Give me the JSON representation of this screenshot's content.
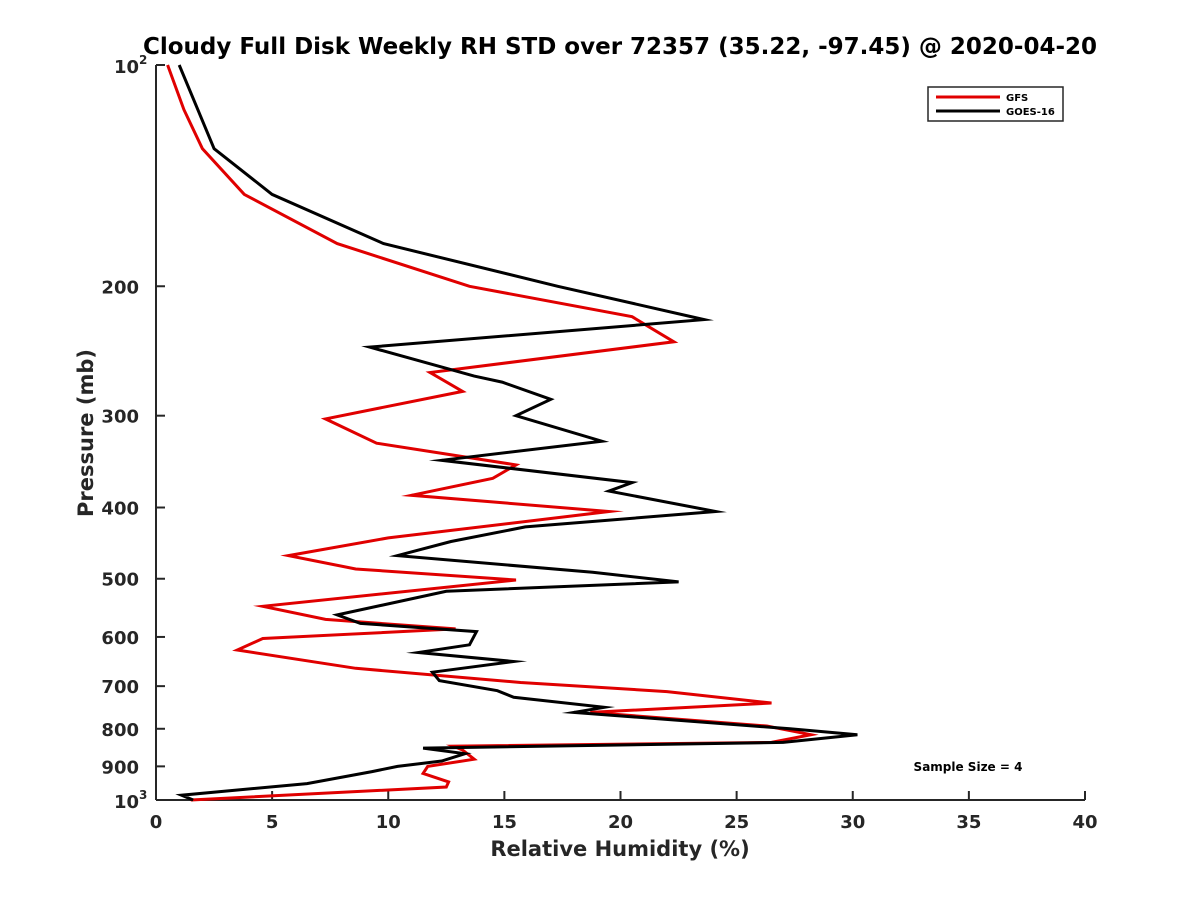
{
  "chart_data": {
    "type": "line",
    "title": "Cloudy Full Disk Weekly RH STD over 72357 (35.22, -97.45) @ 2020-04-20",
    "xlabel": "Relative Humidity (%)",
    "ylabel": "Pressure (mb)",
    "xlim": [
      0,
      40
    ],
    "ylim": [
      100,
      1000
    ],
    "y_scale": "log",
    "y_reversed": true,
    "x_ticks": [
      "0",
      "5",
      "10",
      "15",
      "20",
      "25",
      "30",
      "35",
      "40"
    ],
    "y_ticks": [
      {
        "value": 100,
        "label": "10",
        "sup": "2"
      },
      {
        "value": 200,
        "label": "200"
      },
      {
        "value": 300,
        "label": "300"
      },
      {
        "value": 400,
        "label": "400"
      },
      {
        "value": 500,
        "label": "500"
      },
      {
        "value": 600,
        "label": "600"
      },
      {
        "value": 700,
        "label": "700"
      },
      {
        "value": 800,
        "label": "800"
      },
      {
        "value": 900,
        "label": "900"
      },
      {
        "value": 1000,
        "label": "10",
        "sup": "3"
      }
    ],
    "grid": false,
    "legend_position": "top-right",
    "annotation": "Sample Size = 4",
    "series": [
      {
        "name": "GFS",
        "color": "#e00000",
        "points": [
          [
            0.5,
            100
          ],
          [
            1.2,
            115
          ],
          [
            2.0,
            130
          ],
          [
            3.8,
            150
          ],
          [
            7.8,
            175
          ],
          [
            13.5,
            200
          ],
          [
            20.5,
            220
          ],
          [
            22.3,
            238
          ],
          [
            11.8,
            262
          ],
          [
            13.2,
            278
          ],
          [
            7.3,
            303
          ],
          [
            9.5,
            327
          ],
          [
            15.5,
            350
          ],
          [
            14.5,
            365
          ],
          [
            11.0,
            385
          ],
          [
            19.5,
            405
          ],
          [
            10.0,
            440
          ],
          [
            5.7,
            465
          ],
          [
            8.6,
            485
          ],
          [
            15.5,
            502
          ],
          [
            4.6,
            545
          ],
          [
            7.3,
            568
          ],
          [
            12.9,
            585
          ],
          [
            4.6,
            603
          ],
          [
            3.5,
            625
          ],
          [
            8.6,
            662
          ],
          [
            15.7,
            692
          ],
          [
            22.0,
            712
          ],
          [
            26.5,
            738
          ],
          [
            18.7,
            760
          ],
          [
            26.3,
            793
          ],
          [
            28.2,
            815
          ],
          [
            26.5,
            835
          ],
          [
            12.8,
            845
          ],
          [
            13.2,
            855
          ],
          [
            13.7,
            880
          ],
          [
            11.7,
            900
          ],
          [
            11.5,
            920
          ],
          [
            12.6,
            945
          ],
          [
            12.5,
            960
          ],
          [
            1.5,
            1000
          ]
        ]
      },
      {
        "name": "GOES-16",
        "color": "#000000",
        "points": [
          [
            1.0,
            100
          ],
          [
            1.8,
            115
          ],
          [
            2.5,
            130
          ],
          [
            5.0,
            150
          ],
          [
            9.8,
            175
          ],
          [
            17.3,
            200
          ],
          [
            23.6,
            222
          ],
          [
            9.2,
            242
          ],
          [
            13.7,
            265
          ],
          [
            14.9,
            270
          ],
          [
            17.0,
            285
          ],
          [
            15.5,
            300
          ],
          [
            19.2,
            325
          ],
          [
            12.3,
            345
          ],
          [
            20.5,
            370
          ],
          [
            19.5,
            380
          ],
          [
            24.1,
            405
          ],
          [
            15.9,
            425
          ],
          [
            12.7,
            445
          ],
          [
            10.4,
            465
          ],
          [
            18.8,
            490
          ],
          [
            22.5,
            505
          ],
          [
            12.5,
            520
          ],
          [
            7.8,
            560
          ],
          [
            8.8,
            575
          ],
          [
            13.8,
            590
          ],
          [
            13.5,
            615
          ],
          [
            11.3,
            630
          ],
          [
            15.4,
            648
          ],
          [
            11.9,
            670
          ],
          [
            12.2,
            688
          ],
          [
            14.7,
            710
          ],
          [
            15.4,
            725
          ],
          [
            19.3,
            748
          ],
          [
            18.0,
            760
          ],
          [
            27.3,
            800
          ],
          [
            30.2,
            815
          ],
          [
            27.0,
            835
          ],
          [
            11.5,
            850
          ],
          [
            13.3,
            865
          ],
          [
            12.3,
            885
          ],
          [
            10.4,
            900
          ],
          [
            9.3,
            915
          ],
          [
            6.5,
            950
          ],
          [
            1.1,
            985
          ],
          [
            1.6,
            1000
          ]
        ]
      }
    ]
  }
}
